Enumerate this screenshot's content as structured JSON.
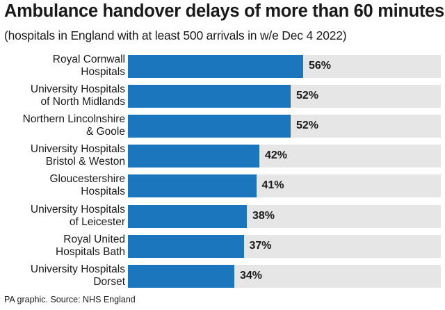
{
  "header": {
    "title": "Ambulance handover delays of more than 60 minutes",
    "subtitle": "(hospitals in England with at least 500 arrivals in w/e Dec 4 2022)"
  },
  "footer": {
    "source": "PA graphic. Source: NHS England"
  },
  "colors": {
    "bar": "#1b76bd",
    "track": "#e6e6e6",
    "text": "#1a1a1a"
  },
  "chart_data": {
    "type": "bar",
    "orientation": "horizontal",
    "title": "Ambulance handover delays of more than 60 minutes",
    "subtitle": "(hospitals in England with at least 500 arrivals in w/e Dec 4 2022)",
    "xlabel": "",
    "ylabel": "",
    "xlim": [
      0,
      100
    ],
    "unit": "%",
    "categories": [
      [
        "Royal Cornwall",
        "Hospitals"
      ],
      [
        "University Hospitals",
        "of North Midlands"
      ],
      [
        "Northern Lincolnshire",
        "& Goole"
      ],
      [
        "University Hospitals",
        "Bristol & Weston"
      ],
      [
        "Gloucestershire",
        "Hospitals"
      ],
      [
        "University Hospitals",
        "of Leicester"
      ],
      [
        "Royal United",
        "Hospitals Bath"
      ],
      [
        "University Hospitals",
        "Dorset"
      ]
    ],
    "values": [
      56,
      52,
      52,
      42,
      41,
      38,
      37,
      34
    ],
    "value_labels": [
      "56%",
      "52%",
      "52%",
      "42%",
      "41%",
      "38%",
      "37%",
      "34%"
    ]
  }
}
